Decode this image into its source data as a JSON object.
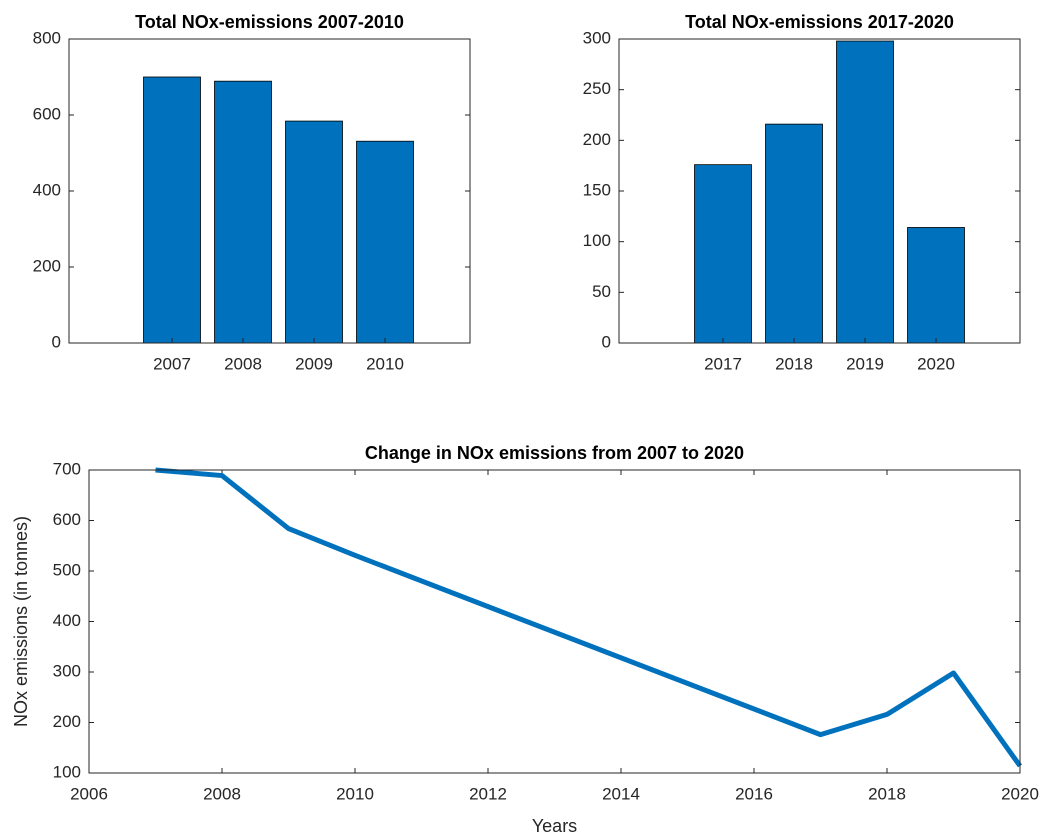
{
  "chart_data": [
    {
      "type": "bar",
      "title": "Total NOx-emissions 2007-2010",
      "categories": [
        "2007",
        "2008",
        "2009",
        "2010"
      ],
      "values": [
        700,
        689,
        584,
        531
      ],
      "color": "#0072bd",
      "ylim": [
        0,
        800
      ],
      "yticks": [
        0,
        200,
        400,
        600,
        800
      ]
    },
    {
      "type": "bar",
      "title": "Total NOx-emissions 2017-2020",
      "categories": [
        "2017",
        "2018",
        "2019",
        "2020"
      ],
      "values": [
        176,
        216,
        298,
        114
      ],
      "color": "#0072bd",
      "ylim": [
        0,
        300
      ],
      "yticks": [
        0,
        50,
        100,
        150,
        200,
        250,
        300
      ]
    },
    {
      "type": "line",
      "title": "Change in NOx emissions from 2007 to 2020",
      "x_label": "Years",
      "y_label": "NOx emissions (in tonnes)",
      "x": [
        2007,
        2008,
        2009,
        2010,
        2017,
        2018,
        2019,
        2020
      ],
      "values": [
        700,
        689,
        584,
        531,
        176,
        216,
        298,
        114
      ],
      "color": "#0072bd",
      "xlim": [
        2006,
        2020
      ],
      "xticks": [
        2006,
        2008,
        2010,
        2012,
        2014,
        2016,
        2018,
        2020
      ],
      "ylim": [
        100,
        700
      ],
      "yticks": [
        100,
        200,
        300,
        400,
        500,
        600,
        700
      ]
    }
  ]
}
